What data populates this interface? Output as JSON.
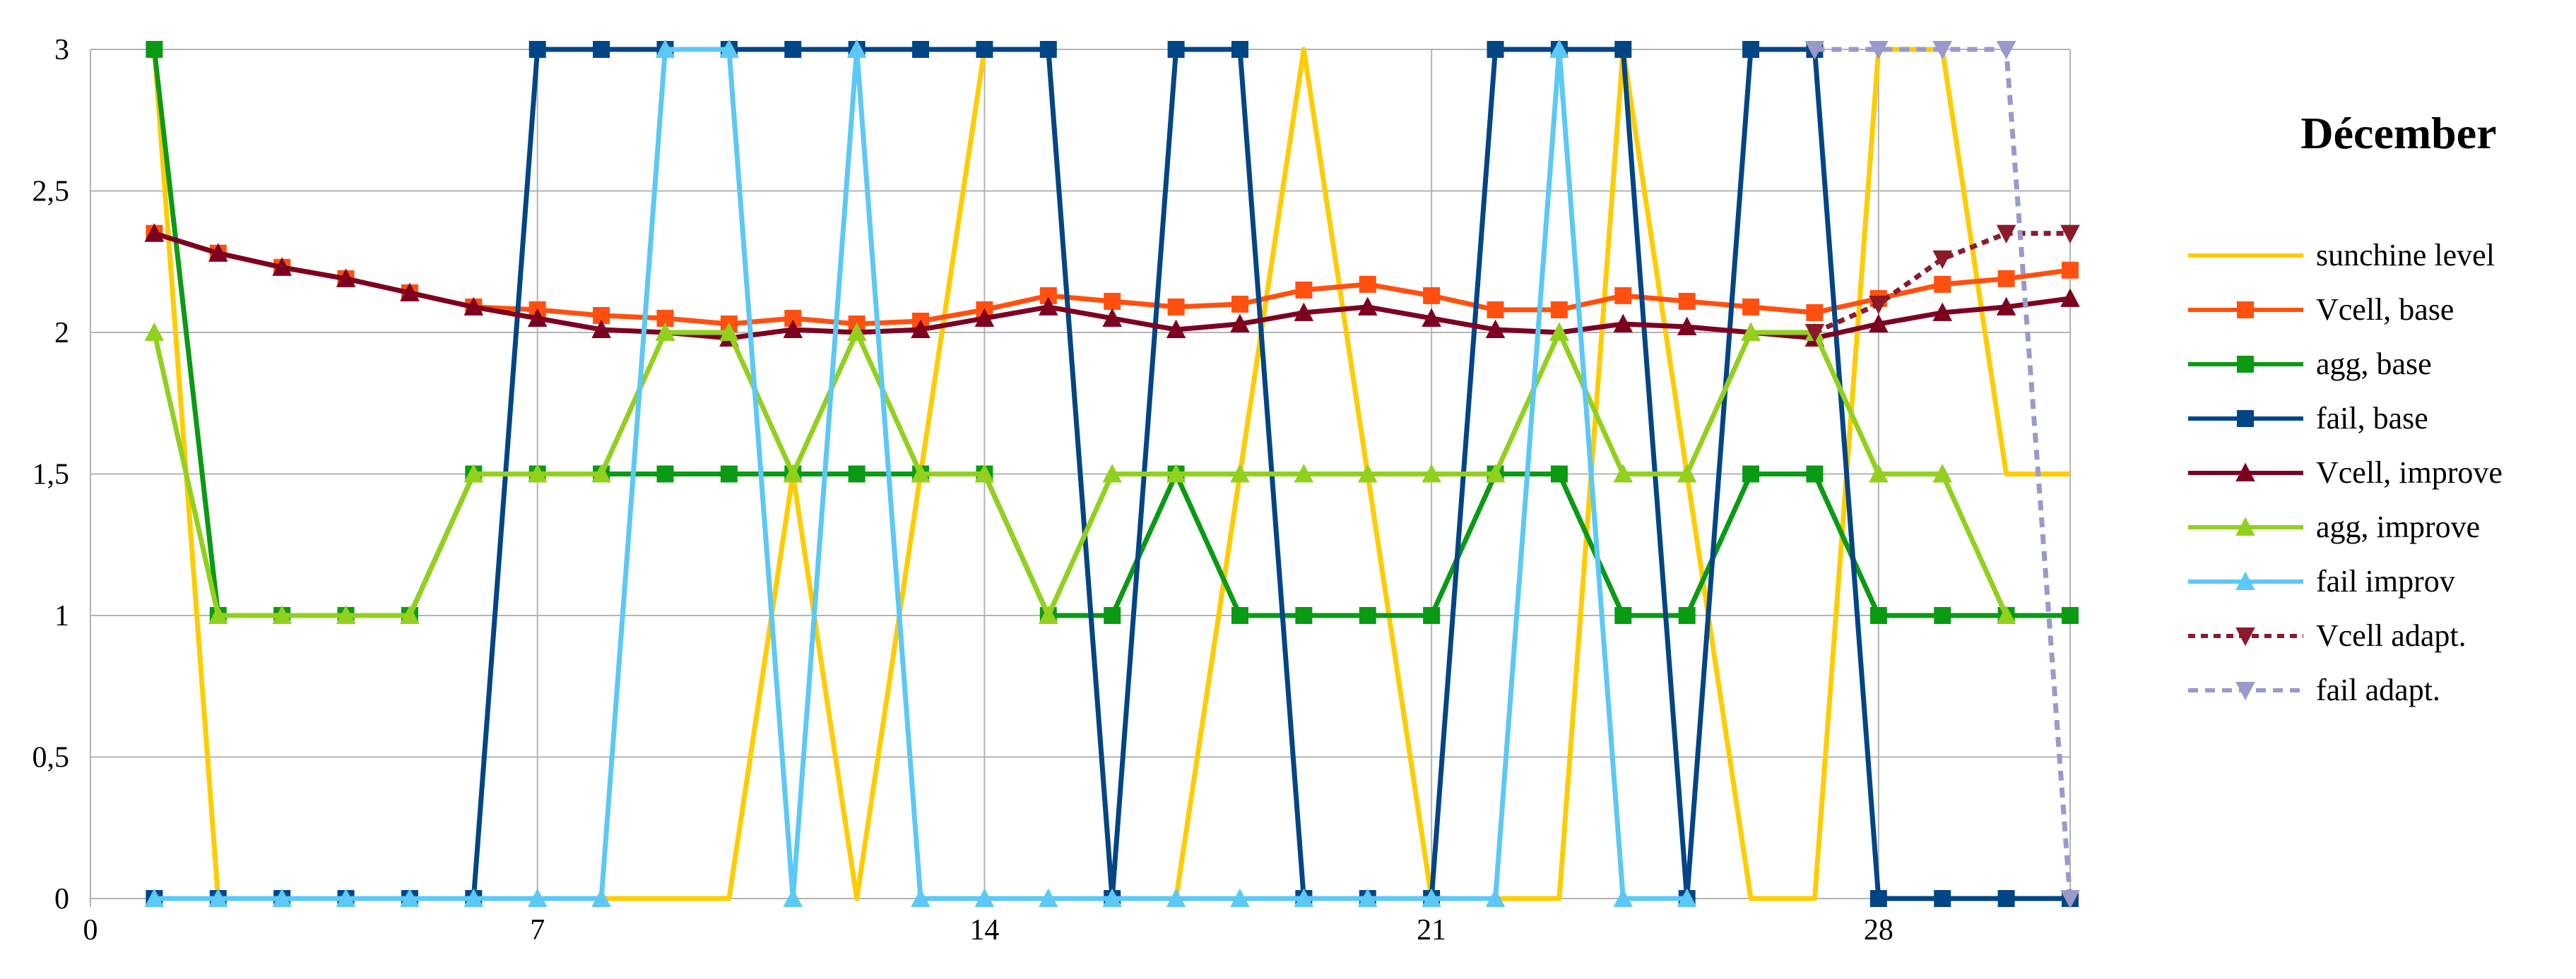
{
  "chart_data": {
    "type": "line",
    "title": "Décember",
    "xlim": [
      0,
      31
    ],
    "ylim": [
      0,
      3
    ],
    "xticks": [
      0,
      7,
      14,
      21,
      28
    ],
    "yticks": [
      0,
      0.5,
      1,
      1.5,
      2,
      2.5,
      3
    ],
    "ytick_labels": [
      "0",
      "0,5",
      "1",
      "1,5",
      "2",
      "2,5",
      "3"
    ],
    "grid": true,
    "legend_position": "right",
    "series": [
      {
        "name": "sunchine level",
        "color": "#FFCC00",
        "dash": "",
        "marker": "none",
        "x": [
          1,
          2,
          3,
          4,
          5,
          6,
          7,
          8,
          9,
          10,
          11,
          12,
          13,
          14,
          15,
          16,
          17,
          18,
          19,
          20,
          21,
          22,
          23,
          24,
          25,
          26,
          27,
          28,
          29,
          30,
          31
        ],
        "y": [
          3,
          0,
          0,
          0,
          0,
          0,
          0,
          0,
          0,
          0,
          1.5,
          0,
          1.5,
          3,
          3,
          0,
          0,
          1.5,
          3,
          1.5,
          0,
          0,
          0,
          3,
          1.5,
          0,
          0,
          3,
          3,
          1.5,
          1.5
        ]
      },
      {
        "name": "Vcell, base",
        "color": "#FF5010",
        "dash": "",
        "marker": "square",
        "x": [
          1,
          2,
          3,
          4,
          5,
          6,
          7,
          8,
          9,
          10,
          11,
          12,
          13,
          14,
          15,
          16,
          17,
          18,
          19,
          20,
          21,
          22,
          23,
          24,
          25,
          26,
          27,
          28,
          29,
          30,
          31
        ],
        "y": [
          2.35,
          2.28,
          2.23,
          2.19,
          2.14,
          2.09,
          2.08,
          2.06,
          2.05,
          2.03,
          2.05,
          2.03,
          2.04,
          2.08,
          2.13,
          2.11,
          2.09,
          2.1,
          2.15,
          2.17,
          2.13,
          2.08,
          2.08,
          2.13,
          2.11,
          2.09,
          2.07,
          2.12,
          2.17,
          2.19,
          2.22
        ]
      },
      {
        "name": "agg, base",
        "color": "#0A9A14",
        "dash": "",
        "marker": "square",
        "x": [
          1,
          2,
          3,
          4,
          5,
          6,
          7,
          8,
          9,
          10,
          11,
          12,
          13,
          14,
          15,
          16,
          17,
          18,
          19,
          20,
          21,
          22,
          23,
          24,
          25,
          26,
          27,
          28,
          29,
          30,
          31
        ],
        "y": [
          3,
          1,
          1,
          1,
          1,
          1.5,
          1.5,
          1.5,
          1.5,
          1.5,
          1.5,
          1.5,
          1.5,
          1.5,
          1,
          1,
          1.5,
          1,
          1,
          1,
          1,
          1.5,
          1.5,
          1,
          1,
          1.5,
          1.5,
          1,
          1,
          1,
          1
        ]
      },
      {
        "name": "fail, base",
        "color": "#004586",
        "dash": "",
        "marker": "square",
        "x": [
          1,
          2,
          3,
          4,
          5,
          6,
          7,
          8,
          9,
          10,
          11,
          12,
          13,
          14,
          15,
          16,
          17,
          18,
          19,
          20,
          21,
          22,
          23,
          24,
          25,
          26,
          27,
          28,
          29,
          30,
          31
        ],
        "y": [
          0,
          0,
          0,
          0,
          0,
          0,
          3,
          3,
          3,
          3,
          3,
          3,
          3,
          3,
          3,
          0,
          3,
          3,
          0,
          0,
          0,
          3,
          3,
          3,
          0,
          3,
          3,
          0,
          0,
          0,
          0
        ]
      },
      {
        "name": "Vcell, improve",
        "color": "#7E0021",
        "dash": "",
        "marker": "triangle-up",
        "x": [
          1,
          2,
          3,
          4,
          5,
          6,
          7,
          8,
          9,
          10,
          11,
          12,
          13,
          14,
          15,
          16,
          17,
          18,
          19,
          20,
          21,
          22,
          23,
          24,
          25,
          26,
          27,
          28,
          29,
          30,
          31
        ],
        "y": [
          2.35,
          2.28,
          2.23,
          2.19,
          2.14,
          2.09,
          2.05,
          2.01,
          2,
          1.98,
          2.01,
          2,
          2.01,
          2.05,
          2.09,
          2.05,
          2.01,
          2.03,
          2.07,
          2.09,
          2.05,
          2.01,
          2,
          2.03,
          2.02,
          2,
          1.98,
          2.03,
          2.07,
          2.09,
          2.12
        ]
      },
      {
        "name": "agg, improve",
        "color": "#92D01E",
        "dash": "",
        "marker": "triangle-up",
        "x": [
          1,
          2,
          3,
          4,
          5,
          6,
          7,
          8,
          9,
          10,
          11,
          12,
          13,
          14,
          15,
          16,
          17,
          18,
          19,
          20,
          21,
          22,
          23,
          24,
          25,
          26,
          27,
          28,
          29,
          30
        ],
        "y": [
          2,
          1,
          1,
          1,
          1,
          1.5,
          1.5,
          1.5,
          2,
          2,
          1.5,
          2,
          1.5,
          1.5,
          1,
          1.5,
          1.5,
          1.5,
          1.5,
          1.5,
          1.5,
          1.5,
          2,
          1.5,
          1.5,
          2,
          2,
          1.5,
          1.5,
          1
        ]
      },
      {
        "name": "fail improv",
        "color": "#5BC8F5",
        "dash": "",
        "marker": "triangle-up",
        "x": [
          1,
          2,
          3,
          4,
          5,
          6,
          7,
          8,
          9,
          10,
          11,
          12,
          13,
          14,
          15,
          16,
          17,
          18,
          19,
          20,
          21,
          22,
          23,
          24,
          25
        ],
        "y": [
          0,
          0,
          0,
          0,
          0,
          0,
          0,
          0,
          3,
          3,
          0,
          3,
          0,
          0,
          0,
          0,
          0,
          0,
          0,
          0,
          0,
          0,
          3,
          0,
          0
        ]
      },
      {
        "name": "Vcell adapt.",
        "color": "#8B1A2B",
        "dash": "10,8",
        "marker": "triangle-down",
        "x": [
          27,
          28,
          29,
          30,
          31
        ],
        "y": [
          2,
          2.1,
          2.26,
          2.35,
          2.35
        ]
      },
      {
        "name": "fail adapt.",
        "color": "#9999CC",
        "dash": "14,10",
        "marker": "triangle-down",
        "x": [
          27,
          28,
          29,
          30,
          31
        ],
        "y": [
          3,
          3,
          3,
          3,
          0
        ]
      }
    ]
  }
}
